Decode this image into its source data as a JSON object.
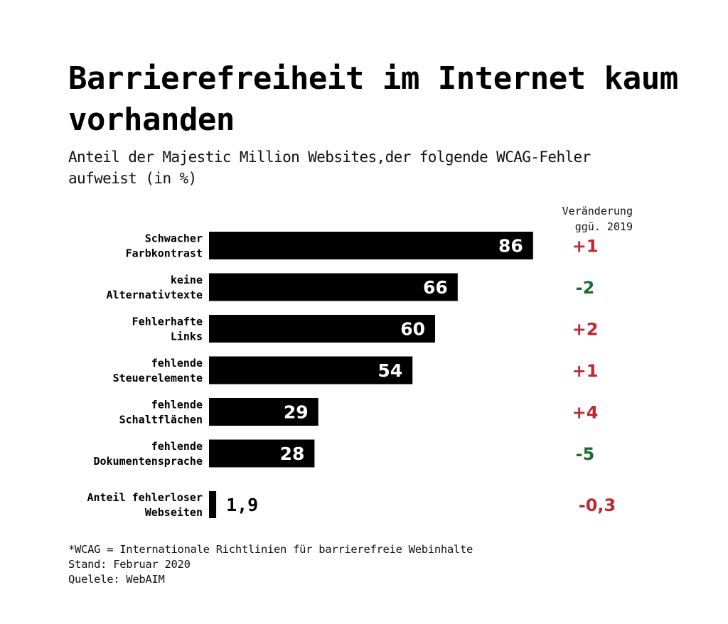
{
  "title": "Barrierefreiheit im Internet kaum vorhanden",
  "subtitle": "Anteil der Majestic Million Websites,der folgende WCAG-Fehler aufweist (in %)",
  "change_header": [
    "Veränderung",
    "ggü. 2019"
  ],
  "footer": [
    "*WCAG = Internationale Richtlinien für barrierefreie Webinhalte",
    "Stand: Februar 2020",
    "Quelele: WebAIM"
  ],
  "colors": {
    "bar": "#000000",
    "increase": "#c2262e",
    "decrease": "#1e6b35"
  },
  "chart_data": {
    "type": "bar",
    "orientation": "horizontal",
    "categories": [
      [
        "Schwacher",
        "Farbkontrast"
      ],
      [
        "keine",
        "Alternativtexte"
      ],
      [
        "Fehlerhafte",
        "Links"
      ],
      [
        "fehlende",
        "Steuerelemente"
      ],
      [
        "fehlende",
        "Schaltflächen"
      ],
      [
        "fehlende",
        "Dokumentensprache"
      ]
    ],
    "values": [
      86,
      66,
      60,
      54,
      29,
      28
    ],
    "value_labels": [
      "86",
      "66",
      "60",
      "54",
      "29",
      "28"
    ],
    "changes": [
      "+1",
      "-2",
      "+2",
      "+1",
      "+4",
      "-5"
    ],
    "change_direction": [
      "up",
      "down",
      "up",
      "up",
      "up",
      "down"
    ],
    "extra": {
      "category": [
        "Anteil fehlerloser",
        "Webseiten"
      ],
      "value": 1.9,
      "value_label": "1,9",
      "change": "-0,3",
      "change_direction": "up"
    },
    "xlim": [
      0,
      100
    ],
    "grid": false,
    "legend": "none"
  }
}
